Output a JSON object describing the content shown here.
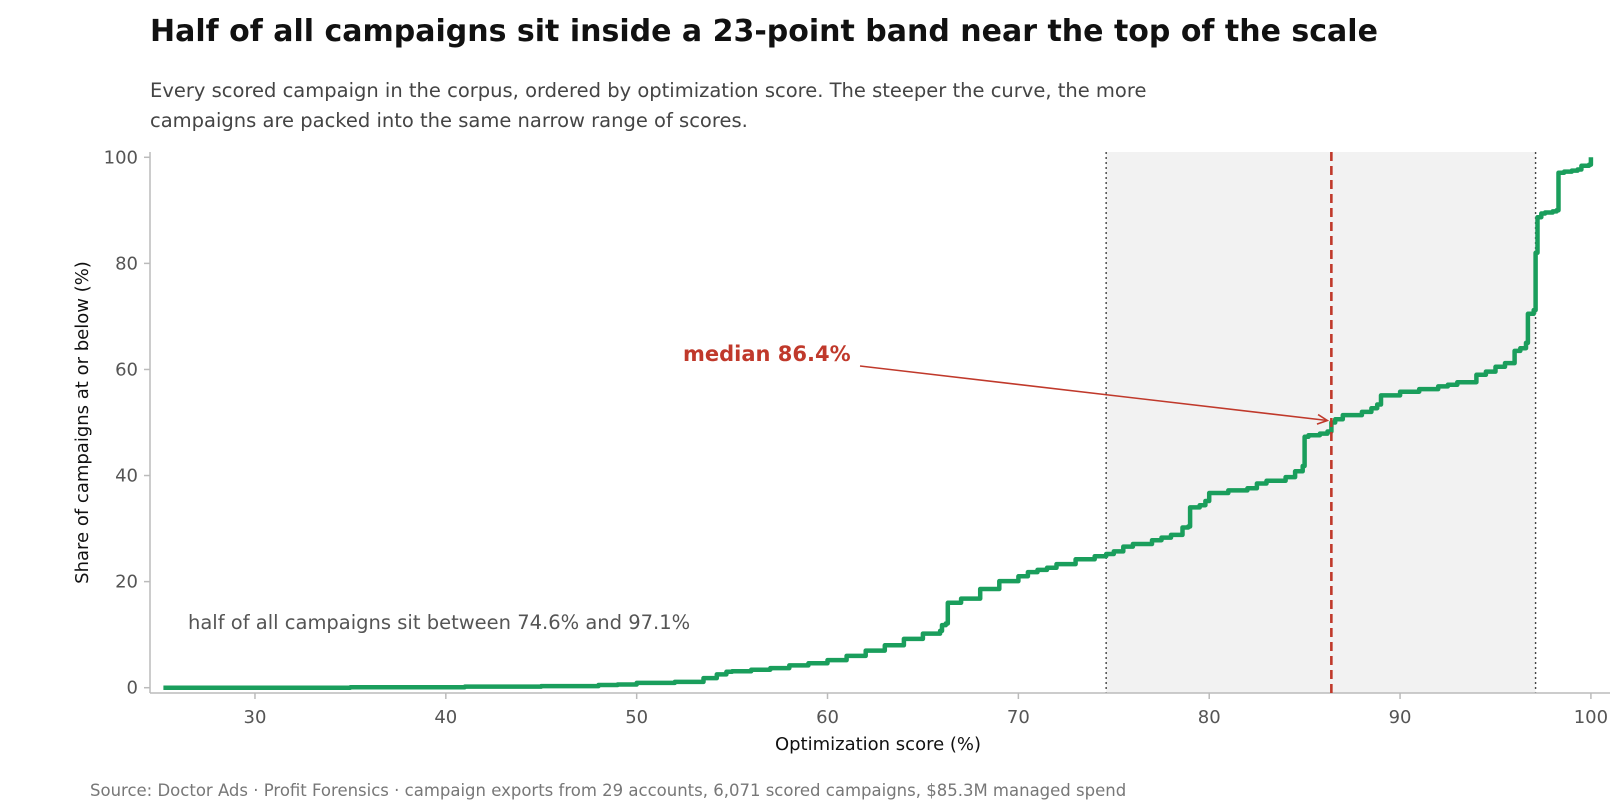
{
  "colors": {
    "line": "#1a9e5c",
    "median": "#c0392b",
    "band": "#f2f2f2",
    "axis": "#bbbbbb",
    "band_edge": "#444444"
  },
  "chart_data": {
    "type": "line",
    "title": "Half of all campaigns sit inside a 23-point band near the top of the scale",
    "subtitle": "Every scored campaign in the corpus, ordered by optimization score. The steeper the curve, the more campaigns are packed into the same narrow range of scores.",
    "xlabel": "Optimization score (%)",
    "ylabel": "Share of campaigns at or below (%)",
    "xlim": [
      24.5,
      101
    ],
    "ylim": [
      -1,
      101
    ],
    "xticks": [
      30,
      40,
      50,
      60,
      70,
      80,
      90,
      100
    ],
    "yticks": [
      0,
      20,
      40,
      60,
      80,
      100
    ],
    "grid": false,
    "band": {
      "x0": 74.6,
      "x1": 97.1,
      "label": "half of all campaigns sit between 74.6% and 97.1%"
    },
    "median": {
      "x": 86.4,
      "y": 50,
      "label": "median 86.4%"
    },
    "source": "Source: Doctor Ads · Profit Forensics · campaign exports from 29 accounts, 6,071 scored campaigns, $85.3M managed spend",
    "series": [
      {
        "x": [
          25.2,
          30,
          35,
          40,
          41,
          45,
          48,
          49,
          50,
          52,
          53.5,
          54.2,
          54.7,
          55,
          56,
          57,
          58,
          59,
          60,
          61,
          62,
          63,
          64,
          65,
          65.9,
          66,
          66.2,
          66.3,
          67,
          68,
          69,
          70,
          70.5,
          71,
          71.5,
          72,
          73,
          74,
          74.6,
          75,
          75.5,
          76,
          77,
          77.5,
          78,
          78.6,
          78.9,
          79,
          79.5,
          79.8,
          80,
          81,
          82,
          82.5,
          83,
          84,
          84.5,
          84.9,
          85,
          85.2,
          85.8,
          86.2,
          86.4,
          86.6,
          87,
          88,
          88.5,
          88.8,
          89,
          90,
          91,
          92,
          92.5,
          93,
          94,
          94.5,
          95,
          95.5,
          96,
          96.3,
          96.6,
          96.7,
          97,
          97.1,
          97.2,
          97.4,
          97.6,
          98,
          98.2,
          98.3,
          98.6,
          99,
          99.3,
          99.5,
          99.9,
          100
        ],
        "y": [
          0,
          0,
          0.1,
          0.1,
          0.2,
          0.3,
          0.5,
          0.6,
          0.9,
          1.1,
          1.8,
          2.5,
          3.0,
          3.1,
          3.4,
          3.7,
          4.2,
          4.6,
          5.2,
          6.0,
          7.0,
          8.0,
          9.2,
          10.2,
          10.7,
          11.8,
          12.1,
          16.0,
          16.8,
          18.6,
          20.1,
          21.0,
          21.8,
          22.2,
          22.6,
          23.3,
          24.2,
          24.8,
          25.2,
          25.7,
          26.6,
          27.1,
          27.8,
          28.3,
          28.8,
          30.2,
          30.4,
          34.0,
          34.4,
          35.2,
          36.7,
          37.2,
          37.6,
          38.5,
          39.0,
          39.7,
          40.8,
          41.8,
          47.3,
          47.6,
          47.9,
          48.3,
          50.0,
          50.6,
          51.4,
          52.0,
          52.7,
          53.4,
          55.1,
          55.8,
          56.3,
          56.8,
          57.1,
          57.6,
          59.0,
          59.6,
          60.5,
          61.2,
          63.5,
          64.0,
          65.0,
          70.5,
          71.2,
          82.0,
          88.7,
          89.4,
          89.6,
          89.8,
          90.0,
          97.1,
          97.3,
          97.5,
          97.7,
          98.4,
          98.6,
          100
        ]
      }
    ]
  }
}
